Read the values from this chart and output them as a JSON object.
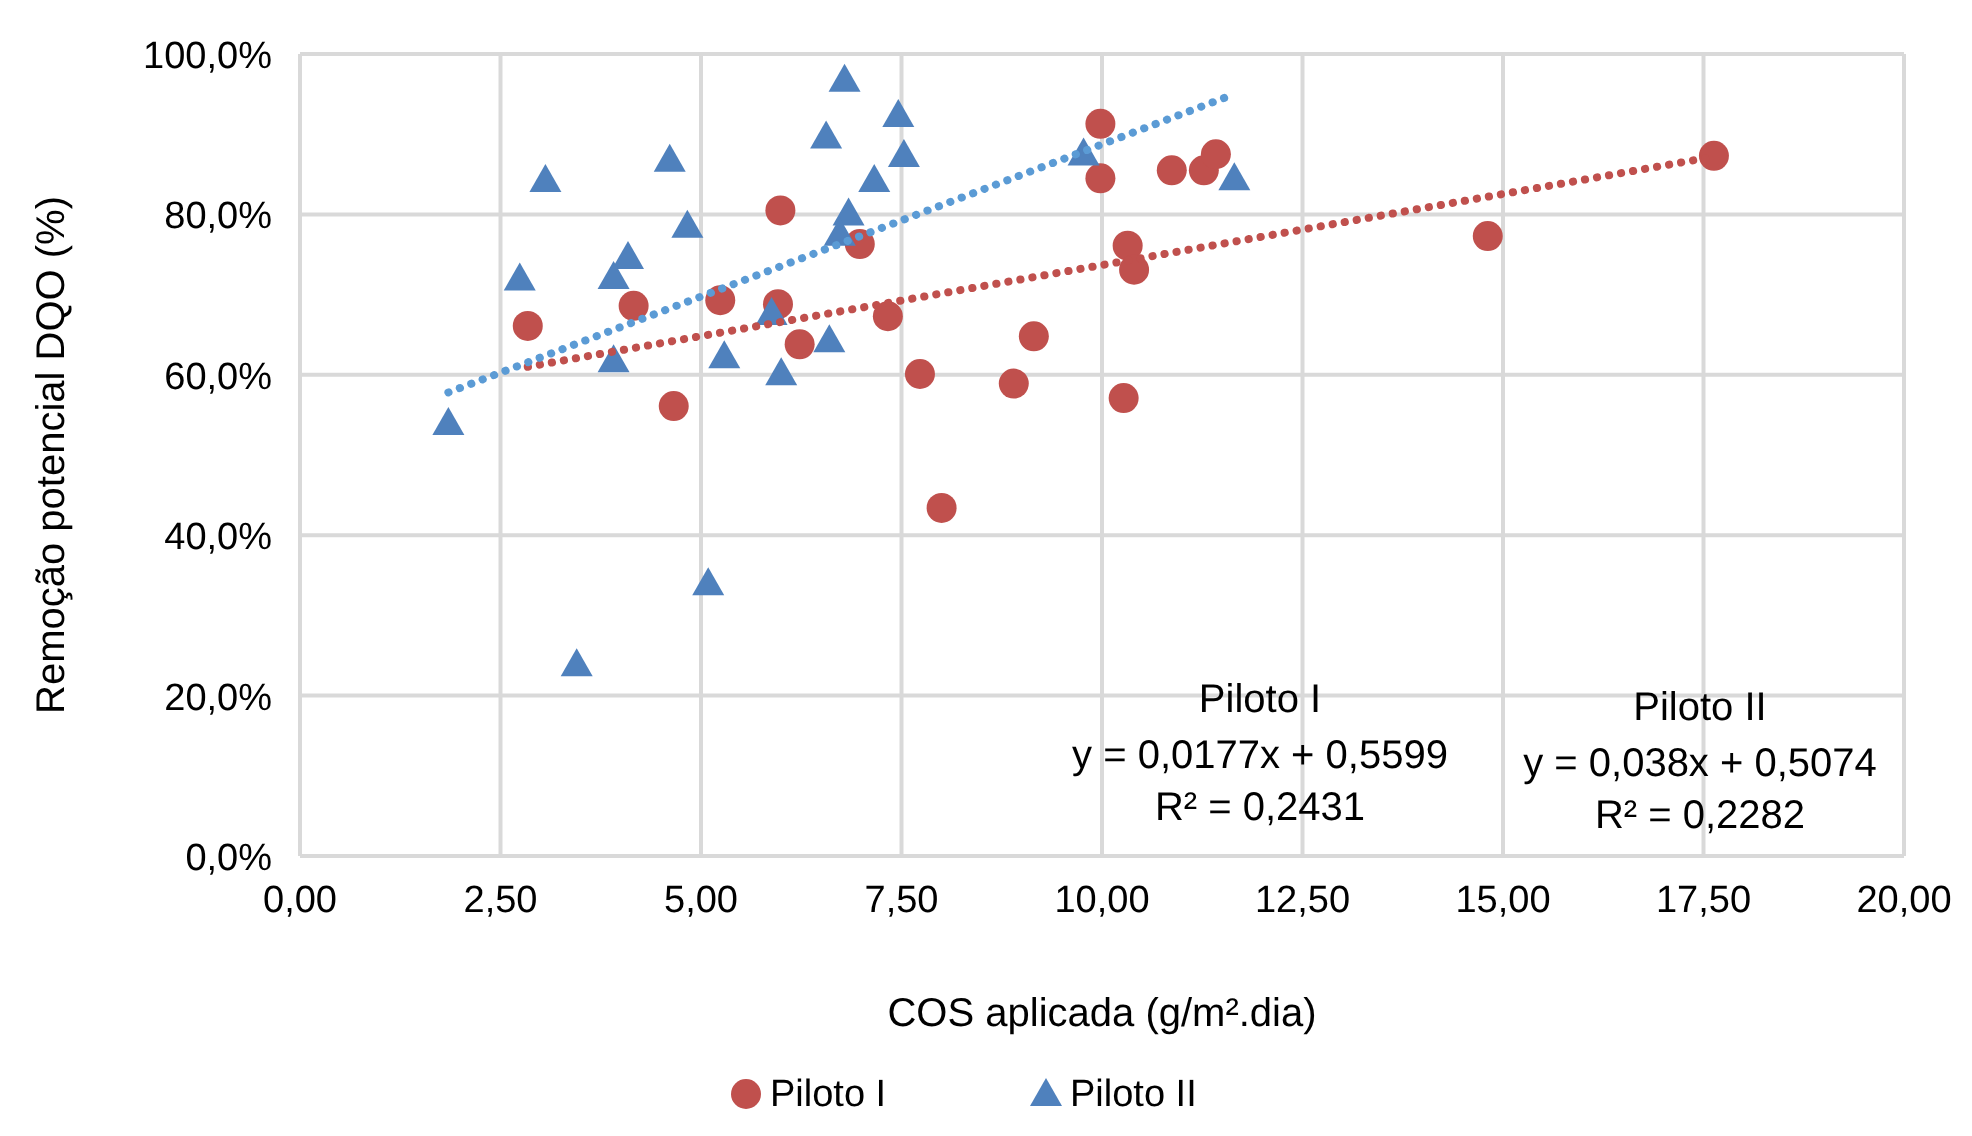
{
  "chart_data": {
    "type": "scatter",
    "xlabel": "COS aplicada (g/m².dia)",
    "ylabel": "Remoção potencial DQO (%)",
    "xlim": [
      0,
      20
    ],
    "ylim": [
      0,
      100
    ],
    "xticks": [
      {
        "value": 0,
        "label": "0,00"
      },
      {
        "value": 2.5,
        "label": "2,50"
      },
      {
        "value": 5,
        "label": "5,00"
      },
      {
        "value": 7.5,
        "label": "7,50"
      },
      {
        "value": 10,
        "label": "10,00"
      },
      {
        "value": 12.5,
        "label": "12,50"
      },
      {
        "value": 15,
        "label": "15,00"
      },
      {
        "value": 17.5,
        "label": "17,50"
      },
      {
        "value": 20,
        "label": "20,00"
      }
    ],
    "yticks": [
      {
        "value": 0,
        "label": "0,0%"
      },
      {
        "value": 20,
        "label": "20,0%"
      },
      {
        "value": 40,
        "label": "40,0%"
      },
      {
        "value": 60,
        "label": "60,0%"
      },
      {
        "value": 80,
        "label": "80,0%"
      },
      {
        "value": 100,
        "label": "100,0%"
      }
    ],
    "grid": true,
    "legend": "bottom",
    "series": [
      {
        "name": "Piloto I",
        "marker": "circle",
        "color": "#c0504d",
        "x": [
          2.84,
          4.66,
          4.16,
          5.24,
          5.99,
          5.96,
          6.23,
          6.98,
          7.33,
          7.73,
          8.0,
          8.9,
          9.15,
          9.98,
          9.98,
          10.27,
          10.32,
          10.4,
          10.87,
          11.27,
          11.42,
          14.81,
          17.63
        ],
        "values": [
          66.1,
          56.1,
          68.6,
          69.3,
          80.5,
          68.8,
          63.8,
          76.3,
          67.3,
          60.1,
          43.4,
          58.9,
          64.8,
          91.3,
          84.5,
          57.1,
          76.1,
          73.1,
          85.5,
          85.5,
          87.5,
          77.3,
          87.3
        ]
      },
      {
        "name": "Piloto II",
        "marker": "triangle",
        "color": "#4f81bd",
        "x": [
          1.85,
          3.06,
          2.74,
          4.61,
          4.83,
          4.09,
          3.91,
          3.91,
          5.09,
          3.45,
          5.29,
          6.0,
          5.88,
          6.6,
          6.79,
          6.56,
          7.46,
          7.53,
          7.16,
          6.84,
          6.73,
          9.77,
          11.65
        ],
        "values": [
          54.0,
          84.3,
          72.0,
          86.8,
          78.6,
          74.7,
          72.2,
          61.8,
          34.0,
          23.9,
          62.3,
          60.2,
          67.7,
          64.3,
          96.8,
          89.7,
          92.4,
          87.4,
          84.3,
          80.1,
          77.6,
          87.6,
          84.5
        ]
      },
      {
        "type": "line",
        "line_style": "dotted",
        "marker": "none",
        "color": "#c0504d",
        "x": [
          2.84,
          17.63
        ],
        "values": [
          61.0,
          87.2
        ]
      },
      {
        "type": "line",
        "line_style": "dotted",
        "marker": "none",
        "color": "#5b9bd5",
        "x": [
          1.85,
          11.65
        ],
        "values": [
          57.8,
          95.0
        ]
      }
    ],
    "annotations": [
      "Piloto I",
      "y = 0,0177x + 0,5599",
      "R² = 0,2431",
      "Piloto II",
      "y = 0,038x + 0,5074",
      "R² = 0,2282"
    ]
  }
}
